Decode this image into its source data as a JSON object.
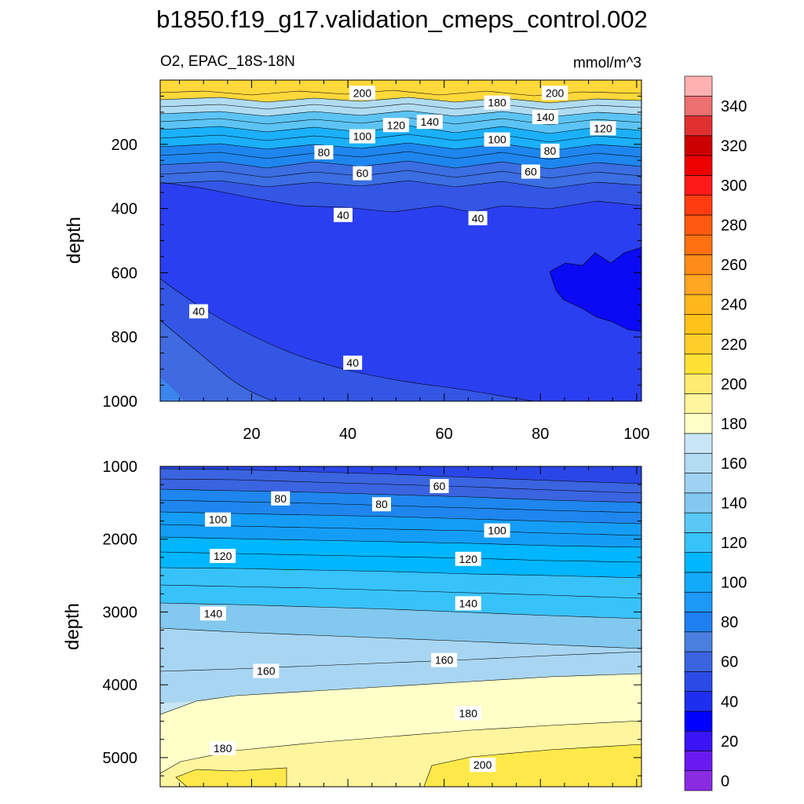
{
  "chart_data": {
    "type": "contour",
    "title": "b1850.f19_g17.validation_cmeps_control.002",
    "variable_label": "O2, EPAC_18S-18N",
    "units_label": "mmol/m^3",
    "panels": [
      {
        "name": "upper",
        "ylabel": "depth",
        "ylim": [
          0,
          1000
        ],
        "y_inverted": true,
        "yticks": [
          200,
          400,
          600,
          800,
          1000
        ],
        "xlim": [
          1,
          101
        ],
        "xticks": [
          20,
          40,
          60,
          80,
          100
        ],
        "x_tick_labels_shown": true,
        "contour_labels": [
          {
            "text": "200",
            "x": 43,
            "y": 40
          },
          {
            "text": "180",
            "x": 71,
            "y": 70
          },
          {
            "text": "200",
            "x": 83,
            "y": 40
          },
          {
            "text": "140",
            "x": 57,
            "y": 130
          },
          {
            "text": "120",
            "x": 50,
            "y": 140
          },
          {
            "text": "140",
            "x": 81,
            "y": 115
          },
          {
            "text": "120",
            "x": 93,
            "y": 150
          },
          {
            "text": "100",
            "x": 43,
            "y": 175
          },
          {
            "text": "100",
            "x": 71,
            "y": 185
          },
          {
            "text": "80",
            "x": 35,
            "y": 225
          },
          {
            "text": "80",
            "x": 82,
            "y": 220
          },
          {
            "text": "60",
            "x": 43,
            "y": 290
          },
          {
            "text": "60",
            "x": 78,
            "y": 285
          },
          {
            "text": "40",
            "x": 39,
            "y": 420
          },
          {
            "text": "40",
            "x": 67,
            "y": 430
          },
          {
            "text": "40",
            "x": 9,
            "y": 720
          },
          {
            "text": "40",
            "x": 41,
            "y": 880
          }
        ]
      },
      {
        "name": "lower",
        "ylabel": "depth",
        "ylim": [
          1000,
          5400
        ],
        "y_inverted": true,
        "yticks": [
          1000,
          2000,
          3000,
          4000,
          5000
        ],
        "xlim": [
          1,
          101
        ],
        "xticks": [
          20,
          40,
          60,
          80,
          100
        ],
        "x_tick_labels_shown": false,
        "contour_labels": [
          {
            "text": "60",
            "x": 59,
            "y": 1270
          },
          {
            "text": "80",
            "x": 26,
            "y": 1440
          },
          {
            "text": "80",
            "x": 47,
            "y": 1520
          },
          {
            "text": "100",
            "x": 13,
            "y": 1730
          },
          {
            "text": "100",
            "x": 71,
            "y": 1880
          },
          {
            "text": "120",
            "x": 14,
            "y": 2230
          },
          {
            "text": "120",
            "x": 65,
            "y": 2270
          },
          {
            "text": "140",
            "x": 12,
            "y": 3020
          },
          {
            "text": "140",
            "x": 65,
            "y": 2880
          },
          {
            "text": "160",
            "x": 23,
            "y": 3810
          },
          {
            "text": "160",
            "x": 60,
            "y": 3660
          },
          {
            "text": "180",
            "x": 65,
            "y": 4390
          },
          {
            "text": "180",
            "x": 14,
            "y": 4870
          },
          {
            "text": "200",
            "x": 68,
            "y": 5100
          }
        ]
      }
    ],
    "colorbar": {
      "levels": [
        0,
        10,
        20,
        30,
        40,
        50,
        60,
        70,
        80,
        90,
        100,
        110,
        120,
        130,
        140,
        150,
        160,
        170,
        180,
        190,
        200,
        210,
        220,
        230,
        240,
        250,
        260,
        270,
        280,
        290,
        300,
        310,
        320,
        330,
        340,
        350
      ],
      "labels": [
        "0",
        "20",
        "40",
        "60",
        "80",
        "100",
        "120",
        "140",
        "160",
        "180",
        "200",
        "220",
        "240",
        "260",
        "280",
        "300",
        "320",
        "340"
      ],
      "colors": [
        "#8a2be2",
        "#6a1af0",
        "#3a14f5",
        "#0000ff",
        "#1f2ff0",
        "#2a4be6",
        "#3a64e0",
        "#4a7fe0",
        "#1e7ff0",
        "#1c98f5",
        "#12aaf8",
        "#00b6ff",
        "#38c2fa",
        "#5ac8f5",
        "#82c8ef",
        "#9ed2f2",
        "#b2dcf2",
        "#c8e6f5",
        "#ffffc8",
        "#fff59e",
        "#ffec70",
        "#ffe135",
        "#ffcf2a",
        "#ffc21a",
        "#ffb71b",
        "#ffa622",
        "#ff8c1a",
        "#ff7010",
        "#ff5a10",
        "#ff3c10",
        "#ff1a1a",
        "#ee0000",
        "#cc0000",
        "#e03030",
        "#ee7070",
        "#ffb0b0"
      ]
    }
  }
}
